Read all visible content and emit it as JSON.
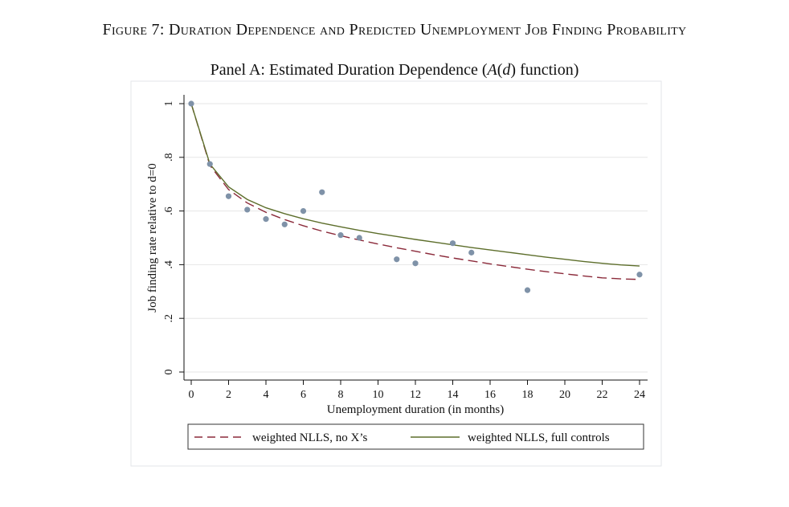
{
  "figure_title": "Figure 7: Duration Dependence and Predicted Unemployment Job Finding Probability",
  "colors": {
    "points": "#7f92a8",
    "dashed_series": "#8b2a3a",
    "solid_series": "#5d6e2b",
    "grid": "#e6e6e6",
    "frame": "#e3e6ea"
  },
  "chart_data": {
    "type": "scatter",
    "title": "Panel A: Estimated Duration Dependence (A(d) function)",
    "title_parts": {
      "pre": "Panel A: Estimated Duration Dependence (",
      "italic": "A",
      "mid": "(",
      "italic2": "d",
      "post": ") function)"
    },
    "xlabel": "Unemployment duration (in months)",
    "ylabel": "Job finding rate relative to d=0",
    "xlim": [
      0,
      24
    ],
    "ylim": [
      0,
      1
    ],
    "xticks": [
      0,
      2,
      4,
      6,
      8,
      10,
      12,
      14,
      16,
      18,
      20,
      22,
      24
    ],
    "xtick_labels": [
      "0",
      "2",
      "4",
      "6",
      "8",
      "10",
      "12",
      "14",
      "16",
      "18",
      "20",
      "22",
      "24"
    ],
    "yticks": [
      0,
      0.2,
      0.4,
      0.6,
      0.8,
      1
    ],
    "ytick_labels": [
      "0",
      ".2",
      ".4",
      ".6",
      ".8",
      "1"
    ],
    "grid": true,
    "legend_position": "bottom",
    "points": {
      "x": [
        0,
        1,
        2,
        3,
        4,
        5,
        6,
        7,
        8,
        9,
        11,
        12,
        14,
        15,
        18,
        24
      ],
      "y": [
        1.0,
        0.775,
        0.655,
        0.605,
        0.57,
        0.55,
        0.6,
        0.67,
        0.51,
        0.5,
        0.42,
        0.405,
        0.48,
        0.445,
        0.305,
        0.363
      ]
    },
    "series": [
      {
        "name": "weighted NLLS, no X’s",
        "style": "dashed",
        "x": [
          0,
          1,
          2,
          3,
          4,
          5,
          6,
          7,
          8,
          9,
          10,
          11,
          12,
          13,
          14,
          15,
          16,
          17,
          18,
          19,
          20,
          21,
          22,
          23,
          24
        ],
        "y": [
          1.0,
          0.77,
          0.68,
          0.63,
          0.595,
          0.568,
          0.545,
          0.525,
          0.508,
          0.492,
          0.477,
          0.463,
          0.45,
          0.437,
          0.425,
          0.414,
          0.403,
          0.393,
          0.383,
          0.374,
          0.366,
          0.358,
          0.351,
          0.347,
          0.345
        ]
      },
      {
        "name": "weighted NLLS, full controls",
        "style": "solid",
        "x": [
          0,
          1,
          2,
          3,
          4,
          5,
          6,
          7,
          8,
          9,
          10,
          11,
          12,
          13,
          14,
          15,
          16,
          17,
          18,
          19,
          20,
          21,
          22,
          23,
          24
        ],
        "y": [
          1.0,
          0.775,
          0.69,
          0.643,
          0.612,
          0.59,
          0.571,
          0.555,
          0.541,
          0.528,
          0.516,
          0.505,
          0.494,
          0.484,
          0.474,
          0.464,
          0.455,
          0.446,
          0.437,
          0.428,
          0.42,
          0.412,
          0.405,
          0.399,
          0.395
        ]
      }
    ]
  }
}
